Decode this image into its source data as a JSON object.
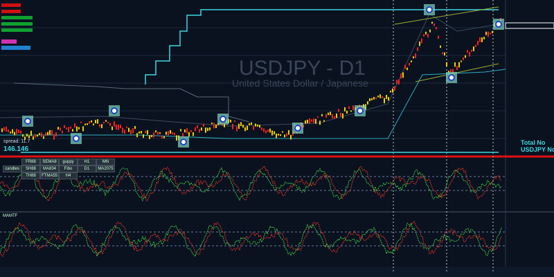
{
  "header": {
    "symbol_title": "USDJPY - D1",
    "description": "United States Dollar / Japanese"
  },
  "info": {
    "spread": "spread: 11.7",
    "price": "146.146",
    "total": "Total No",
    "pair": "USDJPY No"
  },
  "buttons": [
    [
      "FR88",
      "SEMA8",
      "guppy",
      "H1",
      "MN"
    ],
    [
      "candles",
      "SH88",
      "MA834",
      "Fibo",
      "D1",
      "MA2075"
    ],
    [
      "TH88",
      "FTMA55",
      "H4"
    ]
  ],
  "panel_label": "MAMTF"
}
